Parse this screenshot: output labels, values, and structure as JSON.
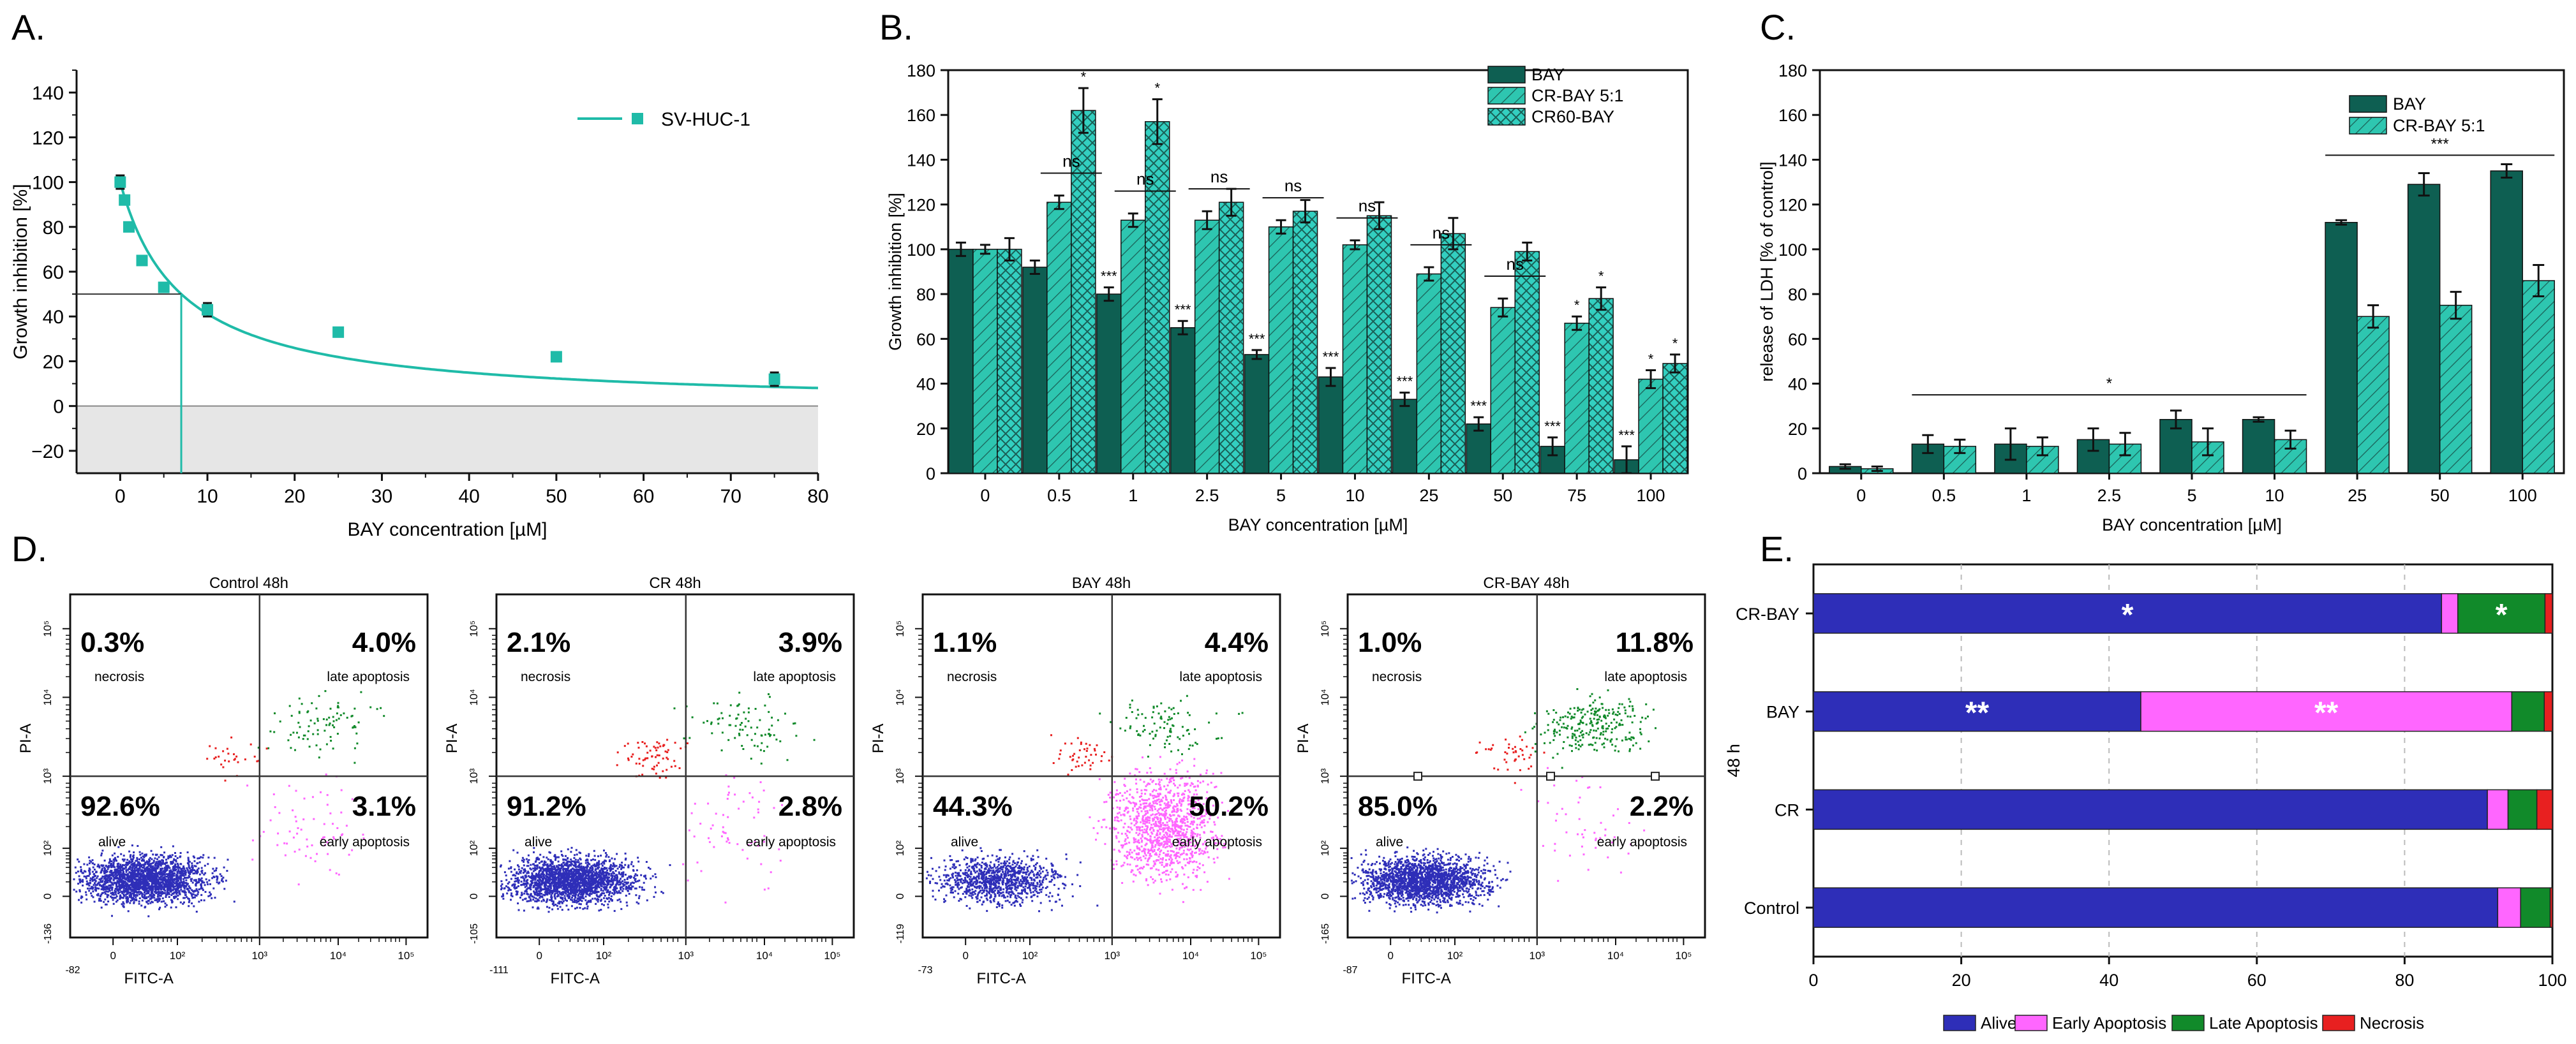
{
  "colors": {
    "teal": "#1FBBA8",
    "dark": "#0E5F52",
    "mid": "#2EC6B0",
    "light": "#33CFC0",
    "gray": "#E6E6E6",
    "alive": "#2E2EB8",
    "early": "#FF66FF",
    "late": "#118A2A",
    "necrosis": "#E82020"
  },
  "chart_data": [
    {
      "id": "A",
      "panel_label": "A.",
      "type": "scatter",
      "title": "",
      "xlabel": "BAY concentration [µM]",
      "ylabel": "Growth inhibition [%]",
      "xlim": [
        -5,
        80
      ],
      "ylim": [
        -30,
        150
      ],
      "xticks": [
        0,
        10,
        20,
        30,
        40,
        50,
        60,
        70,
        80
      ],
      "xtick_labels": [
        "0",
        "10",
        "20",
        "30",
        "40",
        "50",
        "60",
        "70",
        "80"
      ],
      "yticks": [
        -20,
        0,
        20,
        40,
        60,
        80,
        100,
        120,
        140
      ],
      "ytick_labels": [
        "−20",
        "0",
        "20",
        "40",
        "60",
        "80",
        "100",
        "120",
        "140"
      ],
      "legend": "SV-HUC-1",
      "series": [
        {
          "name": "SV-HUC-1",
          "x": [
            0,
            0.5,
            1,
            2.5,
            5,
            10,
            25,
            50,
            75
          ],
          "y": [
            100,
            92,
            80,
            65,
            53,
            43,
            33,
            22,
            12
          ],
          "err": [
            3,
            2,
            2,
            2,
            2,
            3,
            2,
            2,
            3
          ]
        }
      ],
      "fit": {
        "model": "ic50",
        "ic50": 7,
        "top": 100
      },
      "ic50_marker": {
        "x": 7,
        "y": 50
      },
      "negative_region": {
        "y_from": -30,
        "y_to": 0
      }
    },
    {
      "id": "B",
      "panel_label": "B.",
      "type": "bar",
      "title": "",
      "xlabel": "BAY concentration [µM]",
      "ylabel": "Growth inhibition [%]",
      "ylim": [
        0,
        180
      ],
      "yticks": [
        0,
        20,
        40,
        60,
        80,
        100,
        120,
        140,
        160,
        180
      ],
      "ytick_labels": [
        "0",
        "20",
        "40",
        "60",
        "80",
        "100",
        "120",
        "140",
        "160",
        "180"
      ],
      "categories": [
        "0",
        "0.5",
        "1",
        "2.5",
        "5",
        "10",
        "25",
        "50",
        "75",
        "100"
      ],
      "series": [
        {
          "name": "BAY",
          "pattern": "solid",
          "values": [
            100,
            92,
            80,
            65,
            53,
            43,
            33,
            22,
            12,
            6
          ],
          "err": [
            3,
            3,
            3,
            3,
            2,
            4,
            3,
            3,
            4,
            6
          ],
          "marks": [
            "",
            "",
            "***",
            "***",
            "***",
            "***",
            "***",
            "***",
            "***",
            "***"
          ]
        },
        {
          "name": "CR-BAY 5:1",
          "pattern": "hatch",
          "values": [
            100,
            121,
            113,
            113,
            110,
            102,
            89,
            74,
            67,
            42
          ],
          "err": [
            2,
            3,
            3,
            4,
            3,
            2,
            3,
            4,
            3,
            4
          ],
          "marks": [
            "",
            "",
            "",
            "",
            "",
            "",
            "",
            "",
            "*",
            "*"
          ]
        },
        {
          "name": "CR60-BAY",
          "pattern": "cross",
          "values": [
            100,
            162,
            157,
            121,
            117,
            115,
            107,
            99,
            78,
            49
          ],
          "err": [
            5,
            10,
            10,
            6,
            5,
            6,
            7,
            4,
            5,
            4
          ],
          "marks": [
            "",
            "*",
            "*",
            "",
            "",
            "",
            "",
            "",
            "*",
            "*"
          ]
        }
      ],
      "comparisons": [
        {
          "category": "0.5",
          "label": "ns"
        },
        {
          "category": "1",
          "label": "ns"
        },
        {
          "category": "2.5",
          "label": "ns"
        },
        {
          "category": "5",
          "label": "ns"
        },
        {
          "category": "10",
          "label": "ns"
        },
        {
          "category": "25",
          "label": "ns"
        },
        {
          "category": "50",
          "label": "ns"
        }
      ],
      "legend_position": "top-right"
    },
    {
      "id": "C",
      "panel_label": "C.",
      "type": "bar",
      "title": "",
      "xlabel": "BAY concentration [µM]",
      "ylabel": "release of LDH [% of control]",
      "ylim": [
        0,
        180
      ],
      "yticks": [
        0,
        20,
        40,
        60,
        80,
        100,
        120,
        140,
        160,
        180
      ],
      "ytick_labels": [
        "0",
        "20",
        "40",
        "60",
        "80",
        "100",
        "120",
        "140",
        "160",
        "180"
      ],
      "categories": [
        "0",
        "0.5",
        "1",
        "2.5",
        "5",
        "10",
        "25",
        "50",
        "100"
      ],
      "series": [
        {
          "name": "BAY",
          "pattern": "solid",
          "values": [
            3,
            13,
            13,
            15,
            24,
            24,
            112,
            129,
            135
          ],
          "err": [
            1,
            4,
            7,
            5,
            4,
            1,
            1,
            5,
            3
          ]
        },
        {
          "name": "CR-BAY 5:1",
          "pattern": "hatch",
          "values": [
            2,
            12,
            12,
            13,
            14,
            15,
            70,
            75,
            86
          ],
          "err": [
            1,
            3,
            4,
            5,
            6,
            4,
            5,
            6,
            7
          ]
        }
      ],
      "brackets": [
        {
          "from": "0.5",
          "to": "10",
          "value": 35,
          "label": "*"
        },
        {
          "from": "25",
          "to": "100",
          "value": 142,
          "label": "***"
        }
      ],
      "legend_position": "top-right"
    },
    {
      "id": "E",
      "panel_label": "E.",
      "type": "bar",
      "orientation": "horizontal",
      "stacked": true,
      "title": "",
      "xlabel": "",
      "ylabel": "48 h",
      "xlim": [
        0,
        100
      ],
      "xticks": [
        0,
        20,
        40,
        60,
        80,
        100
      ],
      "xtick_labels": [
        "0",
        "20",
        "40",
        "60",
        "80",
        "100"
      ],
      "categories": [
        "CR-BAY",
        "BAY",
        "CR",
        "Control"
      ],
      "series": [
        {
          "name": "Alive",
          "values": [
            85.0,
            44.3,
            91.2,
            92.6
          ]
        },
        {
          "name": "Early Apoptosis",
          "values": [
            2.2,
            50.2,
            2.8,
            3.1
          ]
        },
        {
          "name": "Late Apoptosis",
          "values": [
            11.8,
            4.4,
            3.9,
            4.0
          ]
        },
        {
          "name": "Necrosis",
          "values": [
            1.0,
            1.1,
            2.1,
            0.3
          ]
        }
      ],
      "annotations": [
        {
          "category": "CR-BAY",
          "series": "Alive",
          "label": "*"
        },
        {
          "category": "CR-BAY",
          "series": "Late Apoptosis",
          "label": "*"
        },
        {
          "category": "BAY",
          "series": "Alive",
          "label": "**"
        },
        {
          "category": "BAY",
          "series": "Early Apoptosis",
          "label": "**"
        }
      ],
      "legend_position": "bottom"
    }
  ],
  "flow_panels": {
    "panel_label": "D.",
    "xaxis_label": "FITC-A",
    "yaxis_label": "PI-A",
    "plots": [
      {
        "title": "Control 48h",
        "necrosis": "0.3%",
        "late": "4.0%",
        "alive": "92.6%",
        "early": "3.1%",
        "x_min": "-82",
        "y_min": "-136",
        "q_labels": {
          "necrosis": "necrosis",
          "late": "late apoptosis",
          "alive": "alive",
          "early": "early apoptosis"
        }
      },
      {
        "title": "CR 48h",
        "necrosis": "2.1%",
        "late": "3.9%",
        "alive": "91.2%",
        "early": "2.8%",
        "x_min": "-111",
        "y_min": "-105",
        "q_labels": {
          "necrosis": "necrosis",
          "late": "late apoptosis",
          "alive": "alive",
          "early": "early apoptosis"
        }
      },
      {
        "title": "BAY 48h",
        "necrosis": "1.1%",
        "late": "4.4%",
        "alive": "44.3%",
        "early": "50.2%",
        "x_min": "-73",
        "y_min": "-119",
        "q_labels": {
          "necrosis": "necrosis",
          "late": "late apoptosis",
          "alive": "alive",
          "early": "early apoptosis"
        }
      },
      {
        "title": "CR-BAY 48h",
        "necrosis": "1.0%",
        "late": "11.8%",
        "alive": "85.0%",
        "early": "2.2%",
        "x_min": "-87",
        "y_min": "-165",
        "q_labels": {
          "necrosis": "necrosis",
          "late": "late apoptosis",
          "alive": "alive",
          "early": "early apoptosis"
        }
      }
    ],
    "decades": [
      "0",
      "10²",
      "10³",
      "10⁴",
      "10⁵"
    ]
  }
}
